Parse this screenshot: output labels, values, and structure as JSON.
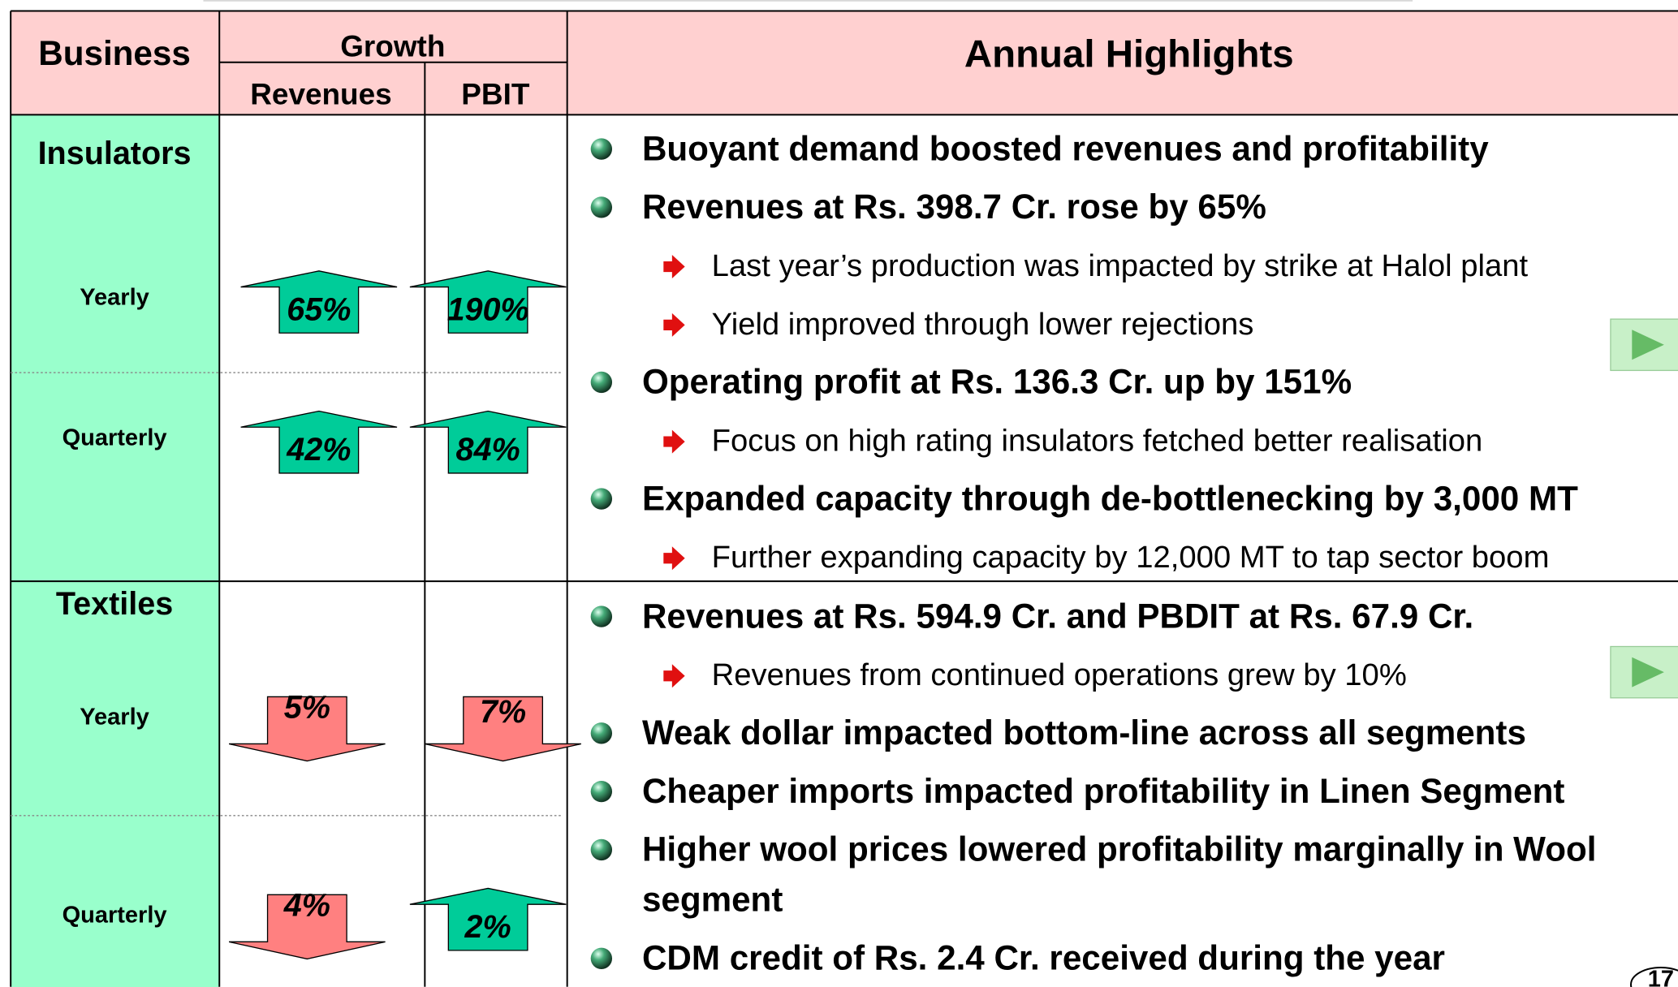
{
  "header": {
    "business": "Business",
    "growth": "Growth",
    "revenues": "Revenues",
    "pbit": "PBIT",
    "highlights": "Annual Highlights"
  },
  "segments": [
    {
      "name": "Insulators",
      "rows": [
        {
          "period": "Yearly",
          "revenues": "65%",
          "revenues_direction": "up",
          "pbit": "190%",
          "pbit_direction": "up"
        },
        {
          "period": "Quarterly",
          "revenues": "42%",
          "revenues_direction": "up",
          "pbit": "84%",
          "pbit_direction": "up"
        }
      ],
      "highlights": [
        {
          "level": 1,
          "lines": [
            "Buoyant demand boosted revenues and profitability"
          ]
        },
        {
          "level": 1,
          "lines": [
            "Revenues at Rs. 398.7 Cr. rose by 65%"
          ]
        },
        {
          "level": 2,
          "lines": [
            "Last year’s production was impacted by strike at Halol plant"
          ]
        },
        {
          "level": 2,
          "lines": [
            "Yield improved through lower rejections"
          ]
        },
        {
          "level": 1,
          "lines": [
            "Operating profit at Rs. 136.3 Cr. up by 151%"
          ]
        },
        {
          "level": 2,
          "lines": [
            "Focus on high rating insulators fetched better realisation"
          ]
        },
        {
          "level": 1,
          "lines": [
            "Expanded capacity through de-bottlenecking by 3,000 MT"
          ]
        },
        {
          "level": 2,
          "lines": [
            "Further expanding capacity by 12,000 MT to tap sector boom"
          ]
        }
      ]
    },
    {
      "name": "Textiles",
      "rows": [
        {
          "period": "Yearly",
          "revenues": "5%",
          "revenues_direction": "down",
          "pbit": "7%",
          "pbit_direction": "down"
        },
        {
          "period": "Quarterly",
          "revenues": "4%",
          "revenues_direction": "down",
          "pbit": "2%",
          "pbit_direction": "up"
        }
      ],
      "highlights": [
        {
          "level": 1,
          "lines": [
            "Revenues at Rs. 594.9 Cr. and PBDIT at Rs. 67.9 Cr."
          ]
        },
        {
          "level": 2,
          "lines": [
            "Revenues from continued operations grew by 10%"
          ]
        },
        {
          "level": 1,
          "lines": [
            "Weak dollar impacted bottom-line across all segments"
          ]
        },
        {
          "level": 1,
          "lines": [
            "Cheaper imports impacted profitability in Linen Segment"
          ]
        },
        {
          "level": 1,
          "lines": [
            "Higher wool prices lowered profitability marginally in Wool",
            "segment"
          ]
        },
        {
          "level": 1,
          "lines": [
            "CDM credit of Rs. 2.4 Cr. received during the year"
          ]
        }
      ]
    }
  ],
  "page_number": "17"
}
